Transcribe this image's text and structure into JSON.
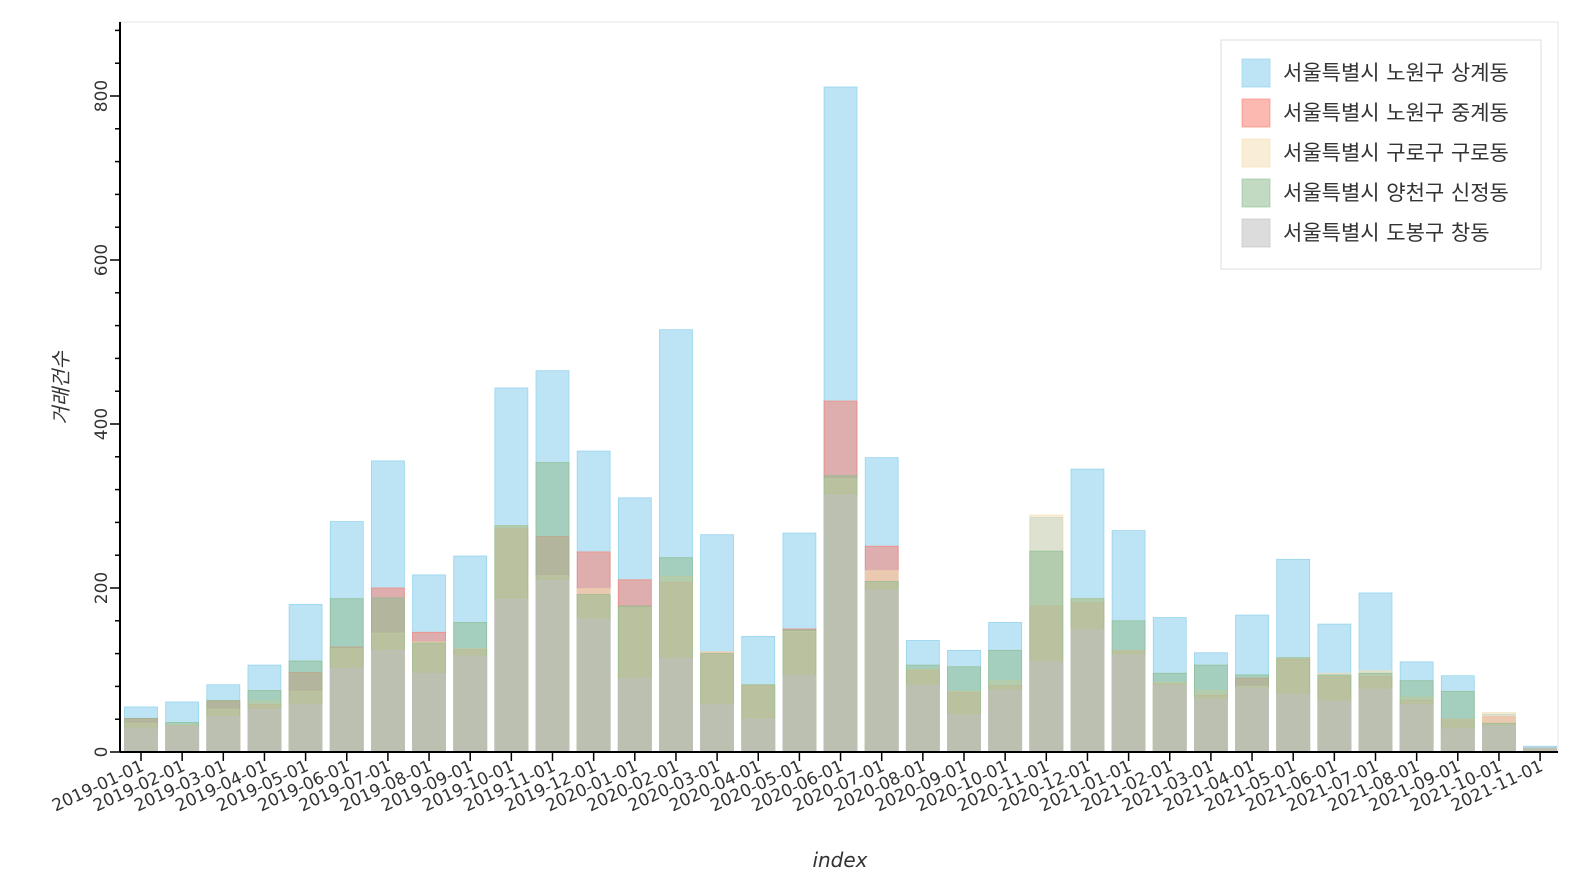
{
  "chart_data": {
    "type": "bar",
    "title": "",
    "xlabel": "index",
    "ylabel": "거래건수",
    "ylim": [
      0,
      880
    ],
    "yticks": [
      0,
      200,
      400,
      600,
      800
    ],
    "grid": false,
    "legend_position": "top-right",
    "categories": [
      "2019-01-01",
      "2019-02-01",
      "2019-03-01",
      "2019-04-01",
      "2019-05-01",
      "2019-06-01",
      "2019-07-01",
      "2019-08-01",
      "2019-09-01",
      "2019-10-01",
      "2019-11-01",
      "2019-12-01",
      "2020-01-01",
      "2020-02-01",
      "2020-03-01",
      "2020-04-01",
      "2020-05-01",
      "2020-06-01",
      "2020-07-01",
      "2020-08-01",
      "2020-09-01",
      "2020-10-01",
      "2020-11-01",
      "2020-12-01",
      "2021-01-01",
      "2021-02-01",
      "2021-03-01",
      "2021-04-01",
      "2021-05-01",
      "2021-06-01",
      "2021-07-01",
      "2021-08-01",
      "2021-09-01",
      "2021-10-01",
      "2021-11-01"
    ],
    "series": [
      {
        "name": "서울특별시 노원구 상계동",
        "color": "#87ceeb",
        "values": [
          55,
          61,
          82,
          106,
          180,
          281,
          355,
          216,
          239,
          444,
          465,
          367,
          310,
          515,
          265,
          141,
          267,
          811,
          359,
          136,
          124,
          158,
          286,
          345,
          270,
          164,
          121,
          167,
          235,
          156,
          194,
          110,
          93,
          46,
          7
        ]
      },
      {
        "name": "서울특별시 노원구 중계동",
        "color": "#fa8072",
        "values": [
          41,
          32,
          62,
          58,
          97,
          128,
          200,
          146,
          125,
          272,
          263,
          244,
          210,
          207,
          122,
          81,
          150,
          428,
          251,
          100,
          73,
          81,
          178,
          182,
          124,
          83,
          69,
          90,
          113,
          92,
          92,
          63,
          40,
          43,
          5
        ]
      },
      {
        "name": "서울특별시 구로구 구로동",
        "color": "#f5deb3",
        "values": [
          35,
          33,
          52,
          62,
          74,
          126,
          145,
          134,
          126,
          276,
          215,
          199,
          176,
          214,
          122,
          82,
          147,
          333,
          221,
          101,
          74,
          87,
          289,
          187,
          124,
          85,
          75,
          80,
          115,
          96,
          99,
          67,
          40,
          48,
          5
        ]
      },
      {
        "name": "서울특별시 양천구 신정동",
        "color": "#8fbc8f",
        "values": [
          41,
          36,
          63,
          75,
          111,
          187,
          188,
          133,
          158,
          276,
          353,
          192,
          178,
          237,
          120,
          82,
          149,
          337,
          208,
          106,
          104,
          124,
          245,
          187,
          160,
          96,
          106,
          94,
          115,
          94,
          96,
          87,
          74,
          35,
          5
        ]
      },
      {
        "name": "서울특별시 도봉구 창동",
        "color": "#c0c0c0",
        "values": [
          28,
          31,
          43,
          52,
          58,
          102,
          124,
          96,
          117,
          186,
          209,
          162,
          89,
          114,
          58,
          40,
          93,
          313,
          197,
          81,
          45,
          75,
          110,
          149,
          118,
          81,
          64,
          78,
          70,
          62,
          76,
          58,
          28,
          32,
          5
        ]
      }
    ]
  }
}
